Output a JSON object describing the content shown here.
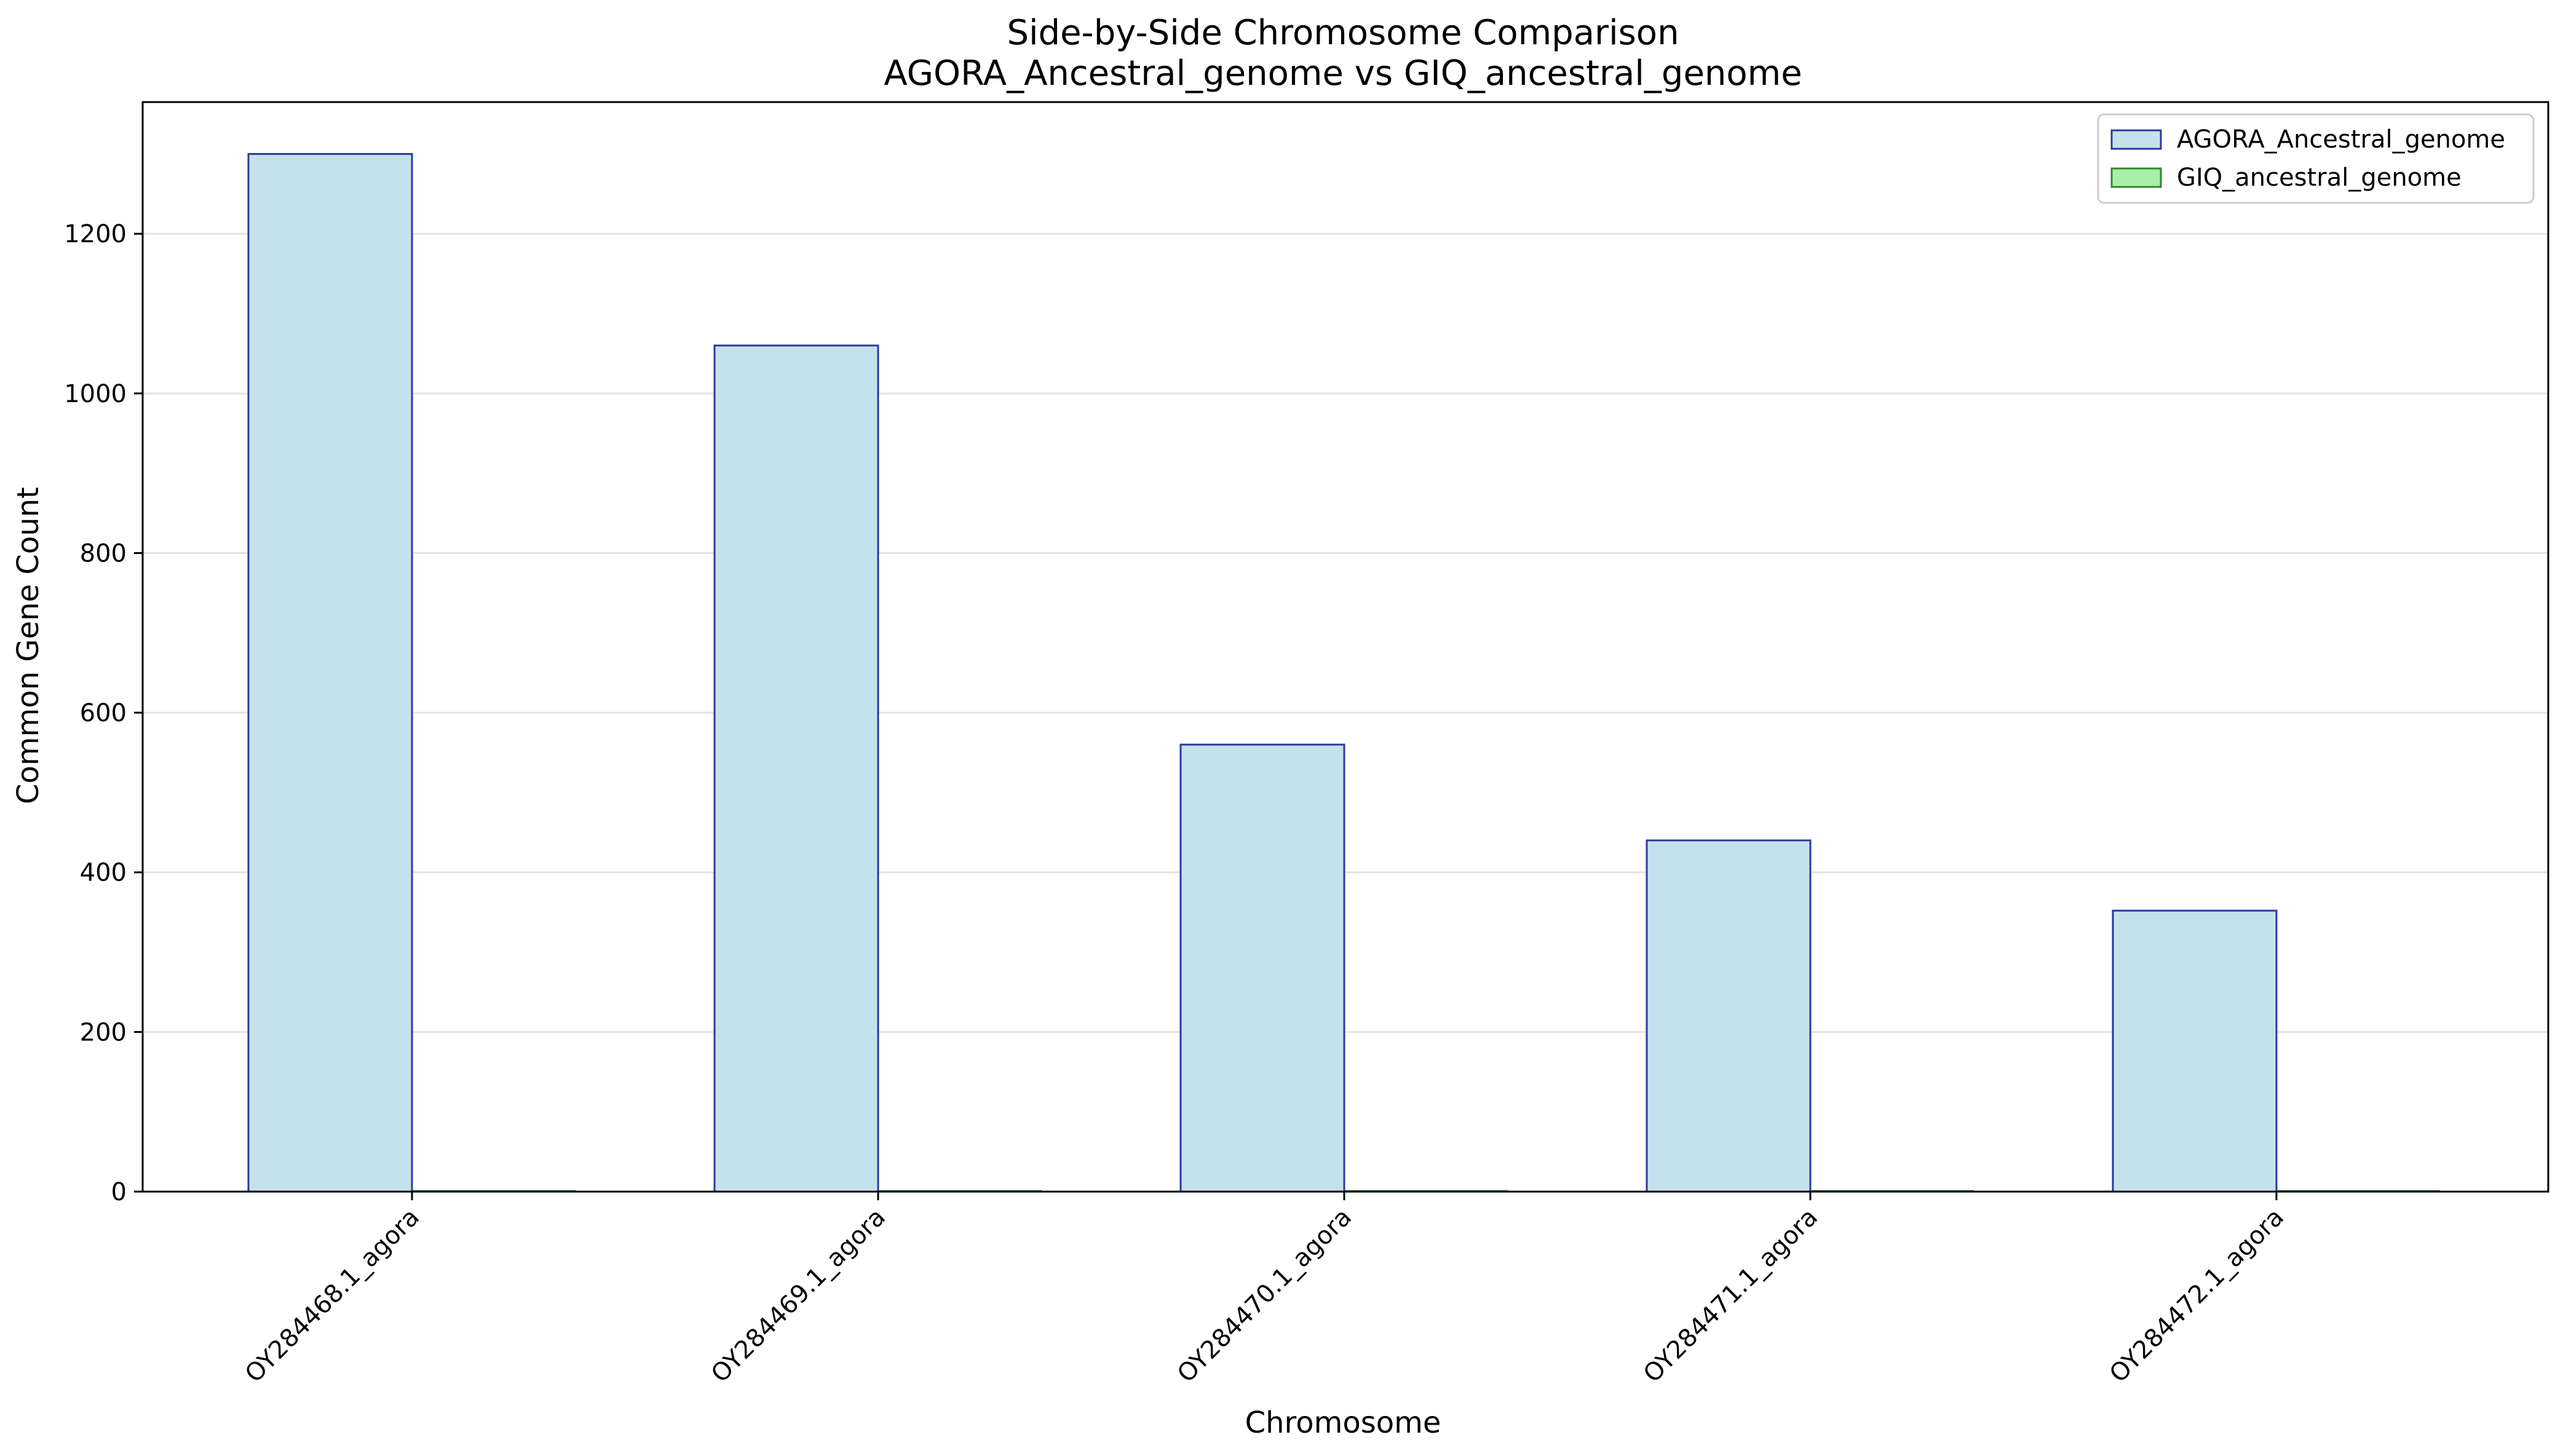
{
  "chart_data": {
    "type": "bar",
    "title": "Side-by-Side Chromosome Comparison",
    "subtitle": "AGORA_Ancestral_genome vs GIQ_ancestral_genome",
    "xlabel": "Chromosome",
    "ylabel": "Common Gene Count",
    "categories": [
      "OY284468.1_agora",
      "OY284469.1_agora",
      "OY284470.1_agora",
      "OY284471.1_agora",
      "OY284472.1_agora"
    ],
    "series": [
      {
        "name": "AGORA_Ancestral_genome",
        "values": [
          1300,
          1060,
          560,
          440,
          352
        ],
        "fill": "#c5e2ec",
        "stroke": "#2b3a9e"
      },
      {
        "name": "GIQ_ancestral_genome",
        "values": [
          0,
          0,
          0,
          0,
          0
        ],
        "fill": "#a8f0a8",
        "stroke": "#2f8a2f"
      }
    ],
    "ylim": [
      0,
      1365
    ],
    "yticks": [
      0,
      200,
      400,
      600,
      800,
      1000,
      1200
    ],
    "grid": "y",
    "legend": "top-right"
  }
}
